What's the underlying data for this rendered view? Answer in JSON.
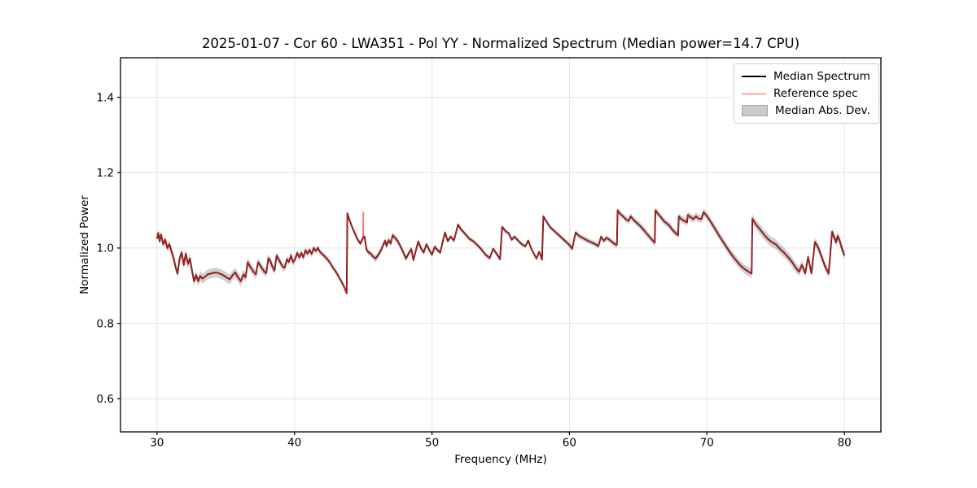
{
  "chart_data": {
    "type": "line",
    "title": "2025-01-07 - Cor 60 - LWA351 - Pol YY - Normalized Spectrum (Median power=14.7 CPU)",
    "xlabel": "Frequency (MHz)",
    "ylabel": "Normalized Power",
    "xlim": [
      27.35,
      82.65
    ],
    "ylim": [
      0.512,
      1.505
    ],
    "xticks": [
      30,
      40,
      50,
      60,
      70,
      80
    ],
    "yticks": [
      0.6,
      0.8,
      1.0,
      1.2,
      1.4
    ],
    "grid": true,
    "grid_color": "#e4e4e4",
    "axis_color": "#000000",
    "legend": {
      "position": "upper right",
      "entries": [
        {
          "label": "Median Spectrum",
          "type": "line",
          "color": "#000000",
          "width": 2.2
        },
        {
          "label": "Reference spec",
          "type": "line",
          "color": "#ff4d4d",
          "width": 1.6
        },
        {
          "label": "Median Abs. Dev.",
          "type": "patch",
          "color": "#cbcbcb",
          "edge": "#a6a6a6"
        }
      ]
    },
    "series": [
      {
        "name": "Median Spectrum",
        "color": "#000000",
        "line_width": 1.9,
        "points": [
          [
            30.0,
            1.025
          ],
          [
            30.1,
            1.04
          ],
          [
            30.2,
            1.018
          ],
          [
            30.3,
            1.036
          ],
          [
            30.45,
            1.01
          ],
          [
            30.6,
            1.022
          ],
          [
            30.75,
            1.0
          ],
          [
            30.9,
            1.01
          ],
          [
            31.05,
            0.992
          ],
          [
            31.2,
            0.975
          ],
          [
            31.35,
            0.95
          ],
          [
            31.5,
            0.932
          ],
          [
            31.65,
            0.972
          ],
          [
            31.8,
            0.988
          ],
          [
            31.95,
            0.955
          ],
          [
            32.1,
            0.985
          ],
          [
            32.25,
            0.958
          ],
          [
            32.4,
            0.972
          ],
          [
            32.55,
            0.94
          ],
          [
            32.7,
            0.912
          ],
          [
            32.85,
            0.928
          ],
          [
            33.0,
            0.912
          ],
          [
            33.15,
            0.926
          ],
          [
            33.3,
            0.919
          ],
          [
            33.5,
            0.924
          ],
          [
            33.7,
            0.93
          ],
          [
            33.9,
            0.932
          ],
          [
            34.1,
            0.934
          ],
          [
            34.3,
            0.935
          ],
          [
            34.5,
            0.933
          ],
          [
            34.7,
            0.93
          ],
          [
            34.9,
            0.926
          ],
          [
            35.1,
            0.921
          ],
          [
            35.3,
            0.917
          ],
          [
            35.5,
            0.928
          ],
          [
            35.7,
            0.935
          ],
          [
            35.9,
            0.922
          ],
          [
            36.1,
            0.912
          ],
          [
            36.3,
            0.93
          ],
          [
            36.45,
            0.922
          ],
          [
            36.6,
            0.962
          ],
          [
            36.75,
            0.952
          ],
          [
            36.9,
            0.944
          ],
          [
            37.05,
            0.936
          ],
          [
            37.2,
            0.93
          ],
          [
            37.35,
            0.962
          ],
          [
            37.5,
            0.955
          ],
          [
            37.65,
            0.945
          ],
          [
            37.8,
            0.938
          ],
          [
            37.95,
            0.933
          ],
          [
            38.1,
            0.973
          ],
          [
            38.25,
            0.965
          ],
          [
            38.4,
            0.95
          ],
          [
            38.55,
            0.94
          ],
          [
            38.7,
            0.98
          ],
          [
            38.85,
            0.97
          ],
          [
            39.0,
            0.96
          ],
          [
            39.15,
            0.95
          ],
          [
            39.3,
            0.948
          ],
          [
            39.45,
            0.97
          ],
          [
            39.6,
            0.963
          ],
          [
            39.75,
            0.98
          ],
          [
            39.9,
            0.962
          ],
          [
            40.05,
            0.97
          ],
          [
            40.2,
            0.987
          ],
          [
            40.35,
            0.975
          ],
          [
            40.5,
            0.987
          ],
          [
            40.65,
            0.975
          ],
          [
            40.8,
            0.994
          ],
          [
            40.95,
            0.985
          ],
          [
            41.1,
            0.995
          ],
          [
            41.25,
            0.984
          ],
          [
            41.4,
            1.0
          ],
          [
            41.55,
            0.992
          ],
          [
            41.7,
            1.0
          ],
          [
            41.85,
            0.99
          ],
          [
            42.0,
            0.985
          ],
          [
            42.2,
            0.978
          ],
          [
            42.4,
            0.97
          ],
          [
            42.6,
            0.96
          ],
          [
            42.8,
            0.948
          ],
          [
            43.0,
            0.938
          ],
          [
            43.2,
            0.925
          ],
          [
            43.4,
            0.912
          ],
          [
            43.6,
            0.898
          ],
          [
            43.8,
            0.88
          ],
          [
            43.85,
            1.092
          ],
          [
            44.0,
            1.075
          ],
          [
            44.2,
            1.055
          ],
          [
            44.4,
            1.038
          ],
          [
            44.6,
            1.022
          ],
          [
            44.8,
            1.012
          ],
          [
            45.0,
            1.028
          ],
          [
            45.1,
            1.03
          ],
          [
            45.25,
            0.995
          ],
          [
            45.4,
            0.988
          ],
          [
            45.55,
            0.985
          ],
          [
            45.7,
            0.978
          ],
          [
            45.9,
            0.972
          ],
          [
            46.1,
            0.982
          ],
          [
            46.3,
            0.995
          ],
          [
            46.45,
            1.008
          ],
          [
            46.6,
            1.019
          ],
          [
            46.7,
            1.005
          ],
          [
            46.85,
            1.021
          ],
          [
            47.0,
            1.012
          ],
          [
            47.15,
            1.034
          ],
          [
            47.3,
            1.028
          ],
          [
            47.5,
            1.019
          ],
          [
            47.7,
            1.005
          ],
          [
            47.9,
            0.99
          ],
          [
            48.1,
            0.972
          ],
          [
            48.3,
            0.985
          ],
          [
            48.5,
            0.997
          ],
          [
            48.65,
            0.968
          ],
          [
            48.8,
            0.99
          ],
          [
            49.0,
            1.017
          ],
          [
            49.2,
            1.0
          ],
          [
            49.4,
            0.988
          ],
          [
            49.6,
            1.01
          ],
          [
            49.8,
            0.995
          ],
          [
            50.0,
            0.982
          ],
          [
            50.2,
            1.003
          ],
          [
            50.4,
            0.995
          ],
          [
            50.6,
            0.988
          ],
          [
            50.8,
            1.02
          ],
          [
            50.95,
            1.041
          ],
          [
            51.15,
            1.018
          ],
          [
            51.35,
            1.03
          ],
          [
            51.6,
            1.02
          ],
          [
            51.9,
            1.062
          ],
          [
            52.1,
            1.05
          ],
          [
            52.4,
            1.038
          ],
          [
            52.7,
            1.025
          ],
          [
            53.0,
            1.018
          ],
          [
            53.3,
            1.008
          ],
          [
            53.6,
            0.996
          ],
          [
            53.9,
            0.982
          ],
          [
            54.2,
            0.973
          ],
          [
            54.45,
            0.998
          ],
          [
            54.7,
            0.985
          ],
          [
            54.95,
            0.97
          ],
          [
            55.1,
            1.056
          ],
          [
            55.35,
            1.045
          ],
          [
            55.6,
            1.038
          ],
          [
            55.8,
            1.022
          ],
          [
            56.0,
            1.03
          ],
          [
            56.2,
            1.022
          ],
          [
            56.4,
            1.015
          ],
          [
            56.6,
            1.008
          ],
          [
            56.8,
            1.005
          ],
          [
            57.0,
            1.02
          ],
          [
            57.2,
            1.0
          ],
          [
            57.4,
            0.986
          ],
          [
            57.6,
            0.972
          ],
          [
            57.8,
            0.99
          ],
          [
            58.0,
            0.969
          ],
          [
            58.1,
            1.084
          ],
          [
            58.3,
            1.072
          ],
          [
            58.6,
            1.055
          ],
          [
            58.9,
            1.045
          ],
          [
            59.2,
            1.035
          ],
          [
            59.5,
            1.025
          ],
          [
            59.8,
            1.015
          ],
          [
            60.0,
            1.008
          ],
          [
            60.2,
            0.998
          ],
          [
            60.45,
            1.041
          ],
          [
            60.7,
            1.032
          ],
          [
            60.9,
            1.028
          ],
          [
            61.1,
            1.024
          ],
          [
            61.3,
            1.02
          ],
          [
            61.6,
            1.015
          ],
          [
            61.9,
            1.01
          ],
          [
            62.1,
            1.005
          ],
          [
            62.3,
            1.03
          ],
          [
            62.5,
            1.019
          ],
          [
            62.7,
            1.027
          ],
          [
            62.9,
            1.022
          ],
          [
            63.1,
            1.016
          ],
          [
            63.3,
            1.01
          ],
          [
            63.45,
            1.008
          ],
          [
            63.5,
            1.1
          ],
          [
            63.7,
            1.09
          ],
          [
            63.9,
            1.084
          ],
          [
            64.1,
            1.076
          ],
          [
            64.3,
            1.072
          ],
          [
            64.45,
            1.084
          ],
          [
            64.65,
            1.075
          ],
          [
            64.85,
            1.068
          ],
          [
            65.1,
            1.06
          ],
          [
            65.4,
            1.048
          ],
          [
            65.7,
            1.035
          ],
          [
            66.0,
            1.022
          ],
          [
            66.2,
            1.014
          ],
          [
            66.25,
            1.1
          ],
          [
            66.45,
            1.09
          ],
          [
            66.65,
            1.082
          ],
          [
            66.85,
            1.072
          ],
          [
            67.05,
            1.066
          ],
          [
            67.25,
            1.06
          ],
          [
            67.45,
            1.05
          ],
          [
            67.65,
            1.042
          ],
          [
            67.9,
            1.034
          ],
          [
            67.95,
            1.084
          ],
          [
            68.15,
            1.076
          ],
          [
            68.35,
            1.072
          ],
          [
            68.55,
            1.068
          ],
          [
            68.6,
            1.088
          ],
          [
            68.8,
            1.082
          ],
          [
            69.0,
            1.077
          ],
          [
            69.2,
            1.084
          ],
          [
            69.4,
            1.078
          ],
          [
            69.6,
            1.077
          ],
          [
            69.75,
            1.095
          ],
          [
            70.0,
            1.085
          ],
          [
            70.3,
            1.068
          ],
          [
            70.6,
            1.05
          ],
          [
            70.9,
            1.032
          ],
          [
            71.2,
            1.015
          ],
          [
            71.5,
            0.998
          ],
          [
            71.8,
            0.982
          ],
          [
            72.1,
            0.968
          ],
          [
            72.4,
            0.955
          ],
          [
            72.7,
            0.945
          ],
          [
            73.0,
            0.938
          ],
          [
            73.25,
            0.932
          ],
          [
            73.3,
            1.078
          ],
          [
            73.5,
            1.065
          ],
          [
            73.8,
            1.052
          ],
          [
            74.1,
            1.038
          ],
          [
            74.4,
            1.025
          ],
          [
            74.7,
            1.016
          ],
          [
            75.0,
            1.01
          ],
          [
            75.3,
            0.998
          ],
          [
            75.6,
            0.988
          ],
          [
            75.9,
            0.976
          ],
          [
            76.2,
            0.962
          ],
          [
            76.45,
            0.948
          ],
          [
            76.7,
            0.937
          ],
          [
            76.9,
            0.955
          ],
          [
            77.15,
            0.933
          ],
          [
            77.35,
            0.976
          ],
          [
            77.6,
            0.933
          ],
          [
            77.85,
            1.016
          ],
          [
            78.1,
            1.0
          ],
          [
            78.35,
            0.975
          ],
          [
            78.6,
            0.95
          ],
          [
            78.85,
            0.932
          ],
          [
            79.1,
            1.043
          ],
          [
            79.25,
            1.028
          ],
          [
            79.4,
            1.015
          ],
          [
            79.5,
            1.032
          ],
          [
            79.65,
            1.02
          ],
          [
            79.8,
            1.0
          ],
          [
            80.0,
            0.98
          ]
        ]
      },
      {
        "name": "Reference spec",
        "color": "#ff2222",
        "opacity": 0.75,
        "line_width": 1.4,
        "follows": "Median Spectrum",
        "extra_spikes": [
          [
            45.0,
            1.095
          ]
        ]
      },
      {
        "name": "Median Abs. Dev.",
        "type": "band",
        "around": "Median Spectrum",
        "color": "#909090",
        "opacity": 0.42,
        "halfwidth_profile": [
          [
            30,
            0.01
          ],
          [
            32,
            0.013
          ],
          [
            36,
            0.013
          ],
          [
            38,
            0.011
          ],
          [
            40,
            0.009
          ],
          [
            43,
            0.007
          ],
          [
            44,
            0.006
          ],
          [
            46,
            0.009
          ],
          [
            48,
            0.008
          ],
          [
            51,
            0.006
          ],
          [
            55,
            0.006
          ],
          [
            58,
            0.005
          ],
          [
            60,
            0.007
          ],
          [
            63,
            0.007
          ],
          [
            65,
            0.009
          ],
          [
            68,
            0.009
          ],
          [
            70,
            0.01
          ],
          [
            72,
            0.011
          ],
          [
            74,
            0.013
          ],
          [
            76,
            0.013
          ],
          [
            78,
            0.011
          ],
          [
            80,
            0.012
          ]
        ]
      }
    ]
  }
}
